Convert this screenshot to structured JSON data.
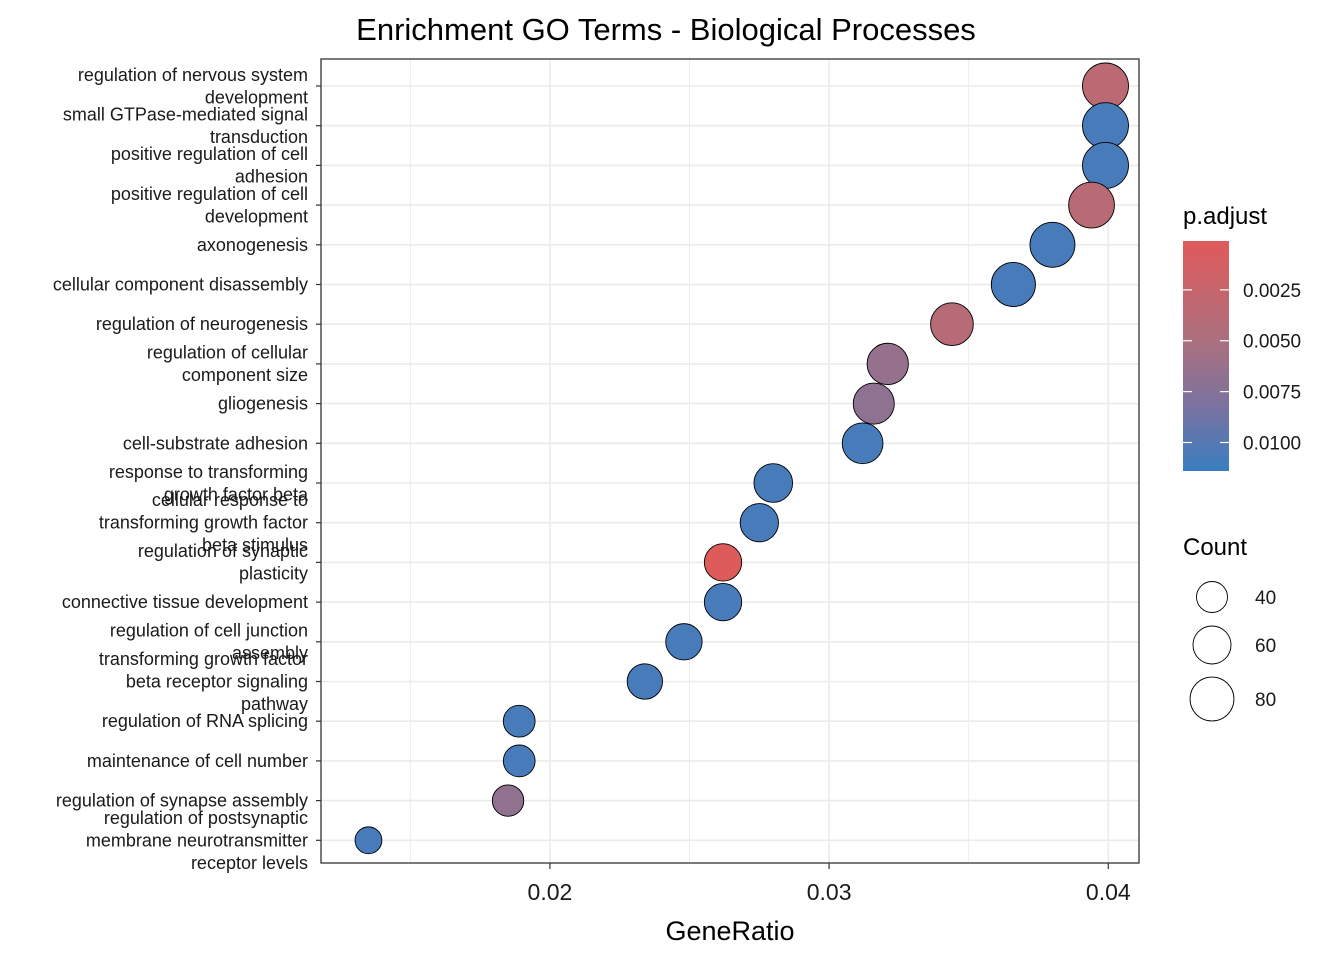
{
  "chart_data": {
    "type": "scatter",
    "title": "Enrichment GO Terms - Biological Processes",
    "xlabel": "GeneRatio",
    "ylabel": "",
    "xlim": [
      0.0118,
      0.0411
    ],
    "xticks": [
      "0.02",
      "0.03",
      "0.04"
    ],
    "grid": true,
    "legend_position": "right",
    "color_legend": {
      "title": "p.adjust",
      "range": [
        0.0001,
        0.0114
      ],
      "low_color": "#E05A5A",
      "high_color": "#3A7EC0",
      "ticks": [
        "0.0025",
        "0.0050",
        "0.0075",
        "0.0100"
      ]
    },
    "size_legend": {
      "title": "Count",
      "values": [
        "40",
        "60",
        "80"
      ]
    },
    "points": [
      {
        "term": [
          "regulation of nervous system",
          "development"
        ],
        "gene_ratio": 0.0399,
        "count": 88,
        "p_adjust": 0.0035
      },
      {
        "term": [
          "small GTPase-mediated signal",
          "transduction"
        ],
        "gene_ratio": 0.0399,
        "count": 88,
        "p_adjust": 0.0107
      },
      {
        "term": [
          "positive regulation of cell",
          "adhesion"
        ],
        "gene_ratio": 0.0399,
        "count": 88,
        "p_adjust": 0.0107
      },
      {
        "term": [
          "positive regulation of cell",
          "development"
        ],
        "gene_ratio": 0.0394,
        "count": 87,
        "p_adjust": 0.0038
      },
      {
        "term": [
          "axonogenesis"
        ],
        "gene_ratio": 0.038,
        "count": 84,
        "p_adjust": 0.0107
      },
      {
        "term": [
          "cellular component disassembly"
        ],
        "gene_ratio": 0.0366,
        "count": 81,
        "p_adjust": 0.0107
      },
      {
        "term": [
          "regulation of neurogenesis"
        ],
        "gene_ratio": 0.0344,
        "count": 76,
        "p_adjust": 0.004
      },
      {
        "term": [
          "regulation of cellular",
          "component size"
        ],
        "gene_ratio": 0.0321,
        "count": 71,
        "p_adjust": 0.0065
      },
      {
        "term": [
          "gliogenesis"
        ],
        "gene_ratio": 0.0316,
        "count": 70,
        "p_adjust": 0.0069
      },
      {
        "term": [
          "cell-substrate adhesion"
        ],
        "gene_ratio": 0.0312,
        "count": 69,
        "p_adjust": 0.0107
      },
      {
        "term": [
          "response to transforming",
          "growth factor beta"
        ],
        "gene_ratio": 0.028,
        "count": 62,
        "p_adjust": 0.0107
      },
      {
        "term": [
          "cellular response to",
          "transforming growth factor",
          "beta stimulus"
        ],
        "gene_ratio": 0.0275,
        "count": 61,
        "p_adjust": 0.0107
      },
      {
        "term": [
          "regulation of synaptic",
          "plasticity"
        ],
        "gene_ratio": 0.0262,
        "count": 58,
        "p_adjust": 0.0003
      },
      {
        "term": [
          "connective tissue development"
        ],
        "gene_ratio": 0.0262,
        "count": 58,
        "p_adjust": 0.0107
      },
      {
        "term": [
          "regulation of cell junction",
          "assembly"
        ],
        "gene_ratio": 0.0248,
        "count": 55,
        "p_adjust": 0.0107
      },
      {
        "term": [
          "transforming growth factor",
          "beta receptor signaling",
          "pathway"
        ],
        "gene_ratio": 0.0234,
        "count": 52,
        "p_adjust": 0.0107
      },
      {
        "term": [
          "regulation of RNA splicing"
        ],
        "gene_ratio": 0.0189,
        "count": 42,
        "p_adjust": 0.0107
      },
      {
        "term": [
          "maintenance of cell number"
        ],
        "gene_ratio": 0.0189,
        "count": 42,
        "p_adjust": 0.0107
      },
      {
        "term": [
          "regulation of synapse assembly"
        ],
        "gene_ratio": 0.0185,
        "count": 41,
        "p_adjust": 0.0068
      },
      {
        "term": [
          "regulation of postsynaptic",
          "membrane neurotransmitter",
          "receptor levels"
        ],
        "gene_ratio": 0.0135,
        "count": 30,
        "p_adjust": 0.0107
      }
    ]
  }
}
